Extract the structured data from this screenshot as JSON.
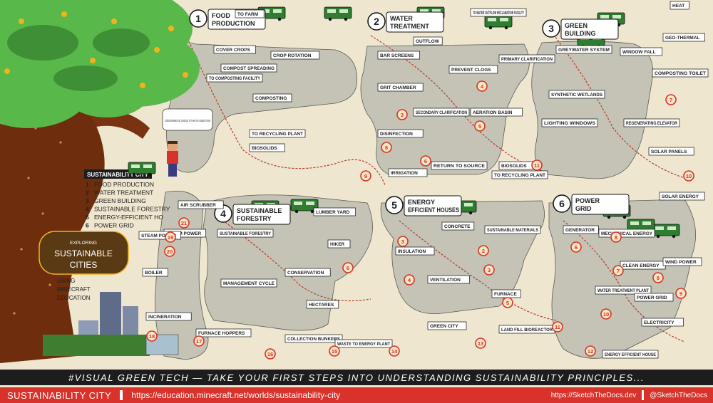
{
  "sections": [
    {
      "num": "1",
      "title_l1": "FOOD",
      "title_l2": "PRODUCTION",
      "subs": [
        "TO FARM",
        "COVER CROPS",
        "CROP ROTATION",
        "COMPOST SPREADING",
        "COMPOSTING",
        "TO COMPOSTING FACILITY",
        "TO RECYCLING PLANT",
        "BIOSOLIDS"
      ]
    },
    {
      "num": "2",
      "title_l1": "WATER",
      "title_l2": "TREATMENT",
      "subs": [
        "OUTFLOW",
        "BAR SCREENS",
        "PREVENT CLOGS",
        "PRIMARY CLARIFICATION",
        "GRIT CHAMBER",
        "SECONDARY CLARIFICATION",
        "AERATION BASIN",
        "DISINFECTION",
        "IRRIGATION",
        "RETURN TO SOURCE",
        "BIOSOLIDS",
        "TO WATER OUTFLOW RECLAMATION FACILITY",
        "TO RECYCLING PLANT"
      ]
    },
    {
      "num": "3",
      "title_l1": "GREEN",
      "title_l2": "BUILDING",
      "subs": [
        "HEAT",
        "GEO-THERMAL",
        "GREYWATER SYSTEM",
        "WINDOW FALL",
        "COMPOSTING TOILET",
        "SYNTHETIC WETLANDS",
        "LIGHTING WINDOWS",
        "REGENERATING ELEVATOR",
        "SOLAR PANELS"
      ]
    },
    {
      "num": "4",
      "title_l1": "SUSTAINABLE",
      "title_l2": "FORESTRY",
      "subs": [
        "SUSTAINABLE FORESTRY",
        "LUMBER YARD",
        "MANAGEMENT CYCLE",
        "CONSERVATION",
        "HIKER",
        "HECTARES"
      ]
    },
    {
      "num": "5",
      "title_l1": "ENERGY",
      "title_l2": "EFFICIENT HOUSES",
      "subs": [
        "INSULATION",
        "VENTILATION",
        "FURNACE",
        "SUSTAINABLE MATERIALS",
        "CONCRETE",
        "GREEN CITY",
        "LAND FILL BIOREACTOR"
      ]
    },
    {
      "num": "6",
      "title_l1": "POWER",
      "title_l2": "GRID",
      "subs": [
        "GENERATOR",
        "MECHANICAL ENERGY",
        "CLEAN ENERGY",
        "WIND POWER",
        "WATER TREATMENT PLANT",
        "POWER GRID",
        "ELECTRICITY",
        "ENERGY EFFICIENT HOUSE",
        "SOLAR ENERGY",
        "STEAM POWER"
      ]
    }
  ],
  "side_steps": [
    "AIR SCRUBBER",
    "STEAM POWER",
    "BOILER",
    "INCINERATION",
    "FURNACE HOPPERS",
    "COLLECTION BUNKERS",
    "WASTE TO ENERGY PLANT"
  ],
  "legend": {
    "title": "SUSTAINABILITY CITY",
    "items": [
      {
        "num": "1",
        "label": "FOOD PRODUCTION"
      },
      {
        "num": "2",
        "label": "WATER TREATMENT"
      },
      {
        "num": "3",
        "label": "GREEN BUILDING"
      },
      {
        "num": "4",
        "label": "SUSTAINABLE FORESTRY"
      },
      {
        "num": "5",
        "label": "ENERGY-EFFICIENT HO"
      },
      {
        "num": "6",
        "label": "POWER GRID"
      }
    ]
  },
  "exploring": {
    "label": "EXPLORING",
    "title_l1": "SUSTAINABLE",
    "title_l2": "CITIES"
  },
  "using": {
    "l1": "USING",
    "l2": "MINECRAFT",
    "l3": "EDUCATION"
  },
  "character_speech": "GOOD MORNING! SO CURIOUS TO TAKE THE GUIDED TOUR!",
  "bottom_banner": "#VISUAL GREEN TECH — TAKE YOUR FIRST STEPS INTO UNDERSTANDING SUSTAINABILITY PRINCIPLES...",
  "footer": {
    "title": "SUSTAINABILITY CITY",
    "url": "https://education.minecraft.net/worlds/sustainability-city",
    "site": "https://SketchTheDocs.dev",
    "handle": "@SketchTheDocs"
  },
  "colors": {
    "red": "#d8322a",
    "green": "#2f7d2f",
    "leaf": "#58b84a",
    "yellow": "#f3b21b",
    "blob": "#bfbfb2",
    "bark": "#6e2d0c",
    "bg": "#efe6cf",
    "dark": "#1d1d1d"
  }
}
